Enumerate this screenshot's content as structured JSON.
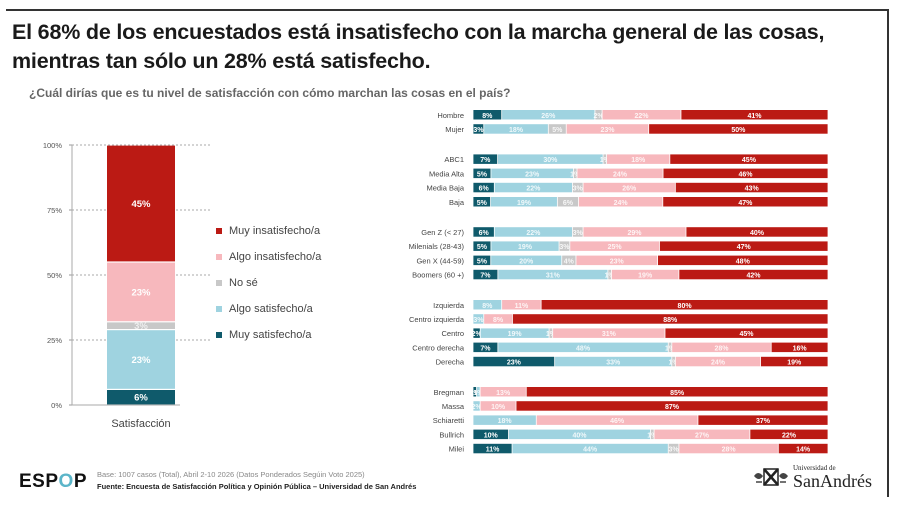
{
  "title_line1": "El 68% de los encuestados está insatisfecho con la marcha general de las cosas,",
  "title_line2": "mientras tan sólo un 28% está satisfecho.",
  "subtitle": "¿Cuál dirías que es tu nivel de satisfacción con cómo marchan las cosas en el país?",
  "colors": {
    "muy_satisfecho": "#0f5a6b",
    "algo_satisfecho": "#9fd3e0",
    "no_se": "#c8c8c8",
    "algo_insatisfecho": "#f7b8bd",
    "muy_insatisfecho": "#bb1a14"
  },
  "chart_data": [
    {
      "type": "bar",
      "stacked": true,
      "orientation": "vertical",
      "categories": [
        "Satisfacción"
      ],
      "series": [
        {
          "name": "Muy satisfecho/a",
          "key": "muy_satisfecho",
          "values": [
            6
          ]
        },
        {
          "name": "Algo satisfecho/a",
          "key": "algo_satisfecho",
          "values": [
            23
          ]
        },
        {
          "name": "No sé",
          "key": "no_se",
          "values": [
            3
          ]
        },
        {
          "name": "Algo insatisfecho/a",
          "key": "algo_insatisfecho",
          "values": [
            23
          ]
        },
        {
          "name": "Muy insatisfecho/a",
          "key": "muy_insatisfecho",
          "values": [
            45
          ]
        }
      ],
      "data_labels": [
        "6%",
        "23%",
        "3%",
        "23%",
        "45%"
      ],
      "ylim": [
        0,
        100
      ],
      "yticks": [
        "0%",
        "25%",
        "50%",
        "75%",
        "100%"
      ],
      "grid": true,
      "legend": {
        "placement": "right",
        "items": [
          "Muy insatisfecho/a",
          "Algo insatisfecho/a",
          "No sé",
          "Algo satisfecho/a",
          "Muy satisfecho/a"
        ]
      }
    },
    {
      "type": "bar",
      "stacked": true,
      "orientation": "horizontal",
      "series_order": [
        "Muy satisfecho/a",
        "Algo satisfecho/a",
        "No sé",
        "Algo insatisfecho/a",
        "Muy insatisfecho/a"
      ],
      "groups": [
        {
          "rows": [
            {
              "label": "Hombre",
              "values": [
                8,
                26,
                2,
                22,
                41
              ]
            },
            {
              "label": "Mujer",
              "values": [
                3,
                18,
                5,
                23,
                50
              ]
            }
          ]
        },
        {
          "rows": [
            {
              "label": "ABC1",
              "values": [
                7,
                30,
                1,
                18,
                45
              ]
            },
            {
              "label": "Media Alta",
              "values": [
                5,
                23,
                1,
                24,
                46
              ]
            },
            {
              "label": "Media Baja",
              "values": [
                6,
                22,
                3,
                26,
                43
              ]
            },
            {
              "label": "Baja",
              "values": [
                5,
                19,
                6,
                24,
                47
              ]
            }
          ]
        },
        {
          "rows": [
            {
              "label": "Gen Z (< 27)",
              "values": [
                6,
                22,
                3,
                29,
                40
              ]
            },
            {
              "label": "Milenials (28-43)",
              "values": [
                5,
                19,
                3,
                25,
                47
              ]
            },
            {
              "label": "Gen X (44-59)",
              "values": [
                5,
                20,
                4,
                23,
                48
              ]
            },
            {
              "label": "Boomers (60 +)",
              "values": [
                7,
                31,
                1,
                19,
                42
              ]
            }
          ]
        },
        {
          "rows": [
            {
              "label": "Izquierda",
              "values": [
                0,
                8,
                0,
                11,
                80
              ]
            },
            {
              "label": "Centro izquierda",
              "values": [
                0,
                3,
                0,
                8,
                88
              ]
            },
            {
              "label": "Centro",
              "values": [
                2,
                19,
                1,
                31,
                45
              ]
            },
            {
              "label": "Centro derecha",
              "values": [
                7,
                48,
                1,
                28,
                16
              ]
            },
            {
              "label": "Derecha",
              "values": [
                23,
                33,
                1,
                24,
                19
              ]
            }
          ]
        },
        {
          "rows": [
            {
              "label": "Bregman",
              "values": [
                1,
                1,
                0,
                13,
                85
              ]
            },
            {
              "label": "Massa",
              "values": [
                0,
                2,
                0,
                10,
                87
              ]
            },
            {
              "label": "Schiaretti",
              "values": [
                0,
                18,
                0,
                46,
                37
              ]
            },
            {
              "label": "Bullrich",
              "values": [
                10,
                40,
                1,
                27,
                22
              ]
            },
            {
              "label": "Milei",
              "values": [
                11,
                44,
                3,
                28,
                14
              ]
            }
          ]
        }
      ],
      "xlim": [
        0,
        100
      ]
    }
  ],
  "footer": {
    "logo_part1": "ESP",
    "logo_part2": "O",
    "logo_part3": "P",
    "base": "Base: 1007 casos (Total), Abril 2-10 2026 (Datos Ponderados Segúin Voto 2025)",
    "source": "Fuente: Encuesta de Satisfacción Política y Opinión Pública – Universidad de San Andrés",
    "university_small": "Universidad de",
    "university_big": "SanAndrés"
  }
}
